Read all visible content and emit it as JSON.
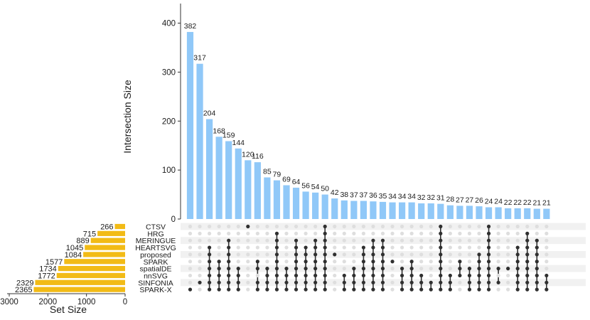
{
  "chart_data": {
    "type": "upset",
    "intersection_axis": {
      "label": "Intersection Size",
      "ticks": [
        0,
        100,
        200,
        300,
        400
      ],
      "ylim": [
        0,
        440
      ]
    },
    "set_size_axis": {
      "label": "Set Size",
      "ticks": [
        3000,
        2000,
        1000,
        0
      ],
      "xlim": [
        3000,
        0
      ]
    },
    "colors": {
      "intersection_bar": "#90c8f8",
      "set_bar": "#f2bb16",
      "dot_on": "#2f2f2f",
      "dot_off": "#dedede",
      "stripe": "#f1f1f1"
    },
    "sets": [
      {
        "name": "CTSV",
        "size": 266
      },
      {
        "name": "HRG",
        "size": 715
      },
      {
        "name": "MERINGUE",
        "size": 889
      },
      {
        "name": "HEARTSVG",
        "size": 1045
      },
      {
        "name": "proposed",
        "size": 1084
      },
      {
        "name": "SPARK",
        "size": 1577
      },
      {
        "name": "spatialDE",
        "size": 1734
      },
      {
        "name": "nnSVG",
        "size": 1772
      },
      {
        "name": "SINFONIA",
        "size": 2329
      },
      {
        "name": "SPARK-X",
        "size": 2365
      }
    ],
    "intersections": [
      {
        "size": 382,
        "sets": [
          "SPARK-X"
        ]
      },
      {
        "size": 317,
        "sets": [
          "SINFONIA"
        ]
      },
      {
        "size": 204,
        "sets": [
          "HEARTSVG",
          "proposed",
          "SPARK",
          "spatialDE",
          "nnSVG",
          "SINFONIA",
          "SPARK-X"
        ]
      },
      {
        "size": 168,
        "sets": [
          "SPARK",
          "spatialDE",
          "nnSVG",
          "SINFONIA",
          "SPARK-X"
        ]
      },
      {
        "size": 159,
        "sets": [
          "MERINGUE",
          "HEARTSVG",
          "proposed",
          "SPARK",
          "spatialDE",
          "nnSVG",
          "SINFONIA",
          "SPARK-X"
        ]
      },
      {
        "size": 144,
        "sets": [
          "spatialDE",
          "nnSVG",
          "SINFONIA",
          "SPARK-X"
        ]
      },
      {
        "size": 120,
        "sets": [
          "CTSV"
        ]
      },
      {
        "size": 116,
        "sets": [
          "SPARK",
          "spatialDE",
          "SINFONIA",
          "SPARK-X"
        ]
      },
      {
        "size": 85,
        "sets": [
          "spatialDE",
          "nnSVG",
          "SINFONIA",
          "SPARK-X"
        ]
      },
      {
        "size": 79,
        "sets": [
          "HRG",
          "MERINGUE",
          "HEARTSVG",
          "proposed",
          "SPARK",
          "spatialDE",
          "nnSVG",
          "SINFONIA",
          "SPARK-X"
        ]
      },
      {
        "size": 69,
        "sets": [
          "spatialDE",
          "nnSVG",
          "SINFONIA",
          "SPARK-X"
        ]
      },
      {
        "size": 64,
        "sets": [
          "MERINGUE",
          "HEARTSVG",
          "proposed",
          "SPARK",
          "spatialDE",
          "nnSVG",
          "SINFONIA",
          "SPARK-X"
        ]
      },
      {
        "size": 56,
        "sets": [
          "HEARTSVG",
          "proposed",
          "SPARK",
          "spatialDE",
          "nnSVG",
          "SINFONIA",
          "SPARK-X"
        ]
      },
      {
        "size": 54,
        "sets": [
          "MERINGUE",
          "HEARTSVG",
          "proposed",
          "SPARK",
          "spatialDE",
          "nnSVG",
          "SINFONIA",
          "SPARK-X"
        ]
      },
      {
        "size": 50,
        "sets": [
          "CTSV",
          "HRG",
          "MERINGUE",
          "HEARTSVG",
          "proposed",
          "SPARK",
          "spatialDE",
          "nnSVG",
          "SINFONIA",
          "SPARK-X"
        ]
      },
      {
        "size": 42,
        "sets": [
          "proposed"
        ]
      },
      {
        "size": 38,
        "sets": [
          "nnSVG",
          "SINFONIA",
          "SPARK-X"
        ]
      },
      {
        "size": 37,
        "sets": [
          "spatialDE",
          "nnSVG",
          "SINFONIA",
          "SPARK-X"
        ]
      },
      {
        "size": 37,
        "sets": [
          "HEARTSVG",
          "proposed",
          "SPARK",
          "spatialDE",
          "nnSVG",
          "SINFONIA",
          "SPARK-X"
        ]
      },
      {
        "size": 36,
        "sets": [
          "MERINGUE",
          "HEARTSVG",
          "proposed",
          "SPARK",
          "spatialDE",
          "nnSVG",
          "SINFONIA",
          "SPARK-X"
        ]
      },
      {
        "size": 35,
        "sets": [
          "MERINGUE",
          "HEARTSVG",
          "proposed",
          "SPARK",
          "spatialDE",
          "nnSVG",
          "SINFONIA",
          "SPARK-X"
        ]
      },
      {
        "size": 34,
        "sets": [
          "SPARK"
        ]
      },
      {
        "size": 34,
        "sets": [
          "spatialDE",
          "nnSVG",
          "SINFONIA",
          "SPARK-X"
        ]
      },
      {
        "size": 34,
        "sets": [
          "SPARK",
          "spatialDE",
          "nnSVG",
          "SINFONIA",
          "SPARK-X"
        ]
      },
      {
        "size": 32,
        "sets": [
          "nnSVG",
          "SINFONIA",
          "SPARK-X"
        ]
      },
      {
        "size": 32,
        "sets": [
          "SINFONIA",
          "SPARK-X"
        ]
      },
      {
        "size": 31,
        "sets": [
          "CTSV",
          "HRG",
          "MERINGUE",
          "HEARTSVG",
          "proposed",
          "SPARK",
          "spatialDE",
          "nnSVG",
          "SINFONIA",
          "SPARK-X"
        ]
      },
      {
        "size": 28,
        "sets": [
          "nnSVG",
          "SINFONIA",
          "SPARK-X"
        ]
      },
      {
        "size": 27,
        "sets": [
          "SPARK",
          "spatialDE",
          "nnSVG"
        ]
      },
      {
        "size": 27,
        "sets": [
          "spatialDE",
          "nnSVG",
          "SINFONIA",
          "SPARK-X"
        ]
      },
      {
        "size": 26,
        "sets": [
          "proposed",
          "SPARK",
          "spatialDE",
          "nnSVG",
          "SINFONIA",
          "SPARK-X"
        ]
      },
      {
        "size": 24,
        "sets": [
          "CTSV",
          "HRG",
          "MERINGUE",
          "HEARTSVG",
          "proposed",
          "SPARK",
          "spatialDE",
          "nnSVG",
          "SINFONIA",
          "SPARK-X"
        ]
      },
      {
        "size": 24,
        "sets": [
          "spatialDE",
          "SINFONIA"
        ]
      },
      {
        "size": 22,
        "sets": [
          "spatialDE"
        ]
      },
      {
        "size": 22,
        "sets": [
          "HEARTSVG",
          "proposed",
          "SPARK",
          "spatialDE",
          "nnSVG",
          "SINFONIA",
          "SPARK-X"
        ]
      },
      {
        "size": 22,
        "sets": [
          "HRG",
          "MERINGUE",
          "HEARTSVG",
          "proposed",
          "SPARK",
          "spatialDE",
          "nnSVG",
          "SINFONIA",
          "SPARK-X"
        ]
      },
      {
        "size": 21,
        "sets": [
          "MERINGUE",
          "HEARTSVG",
          "proposed",
          "SPARK",
          "spatialDE",
          "nnSVG",
          "SINFONIA",
          "SPARK-X"
        ]
      },
      {
        "size": 21,
        "sets": [
          "nnSVG",
          "SINFONIA",
          "SPARK-X"
        ]
      }
    ]
  }
}
